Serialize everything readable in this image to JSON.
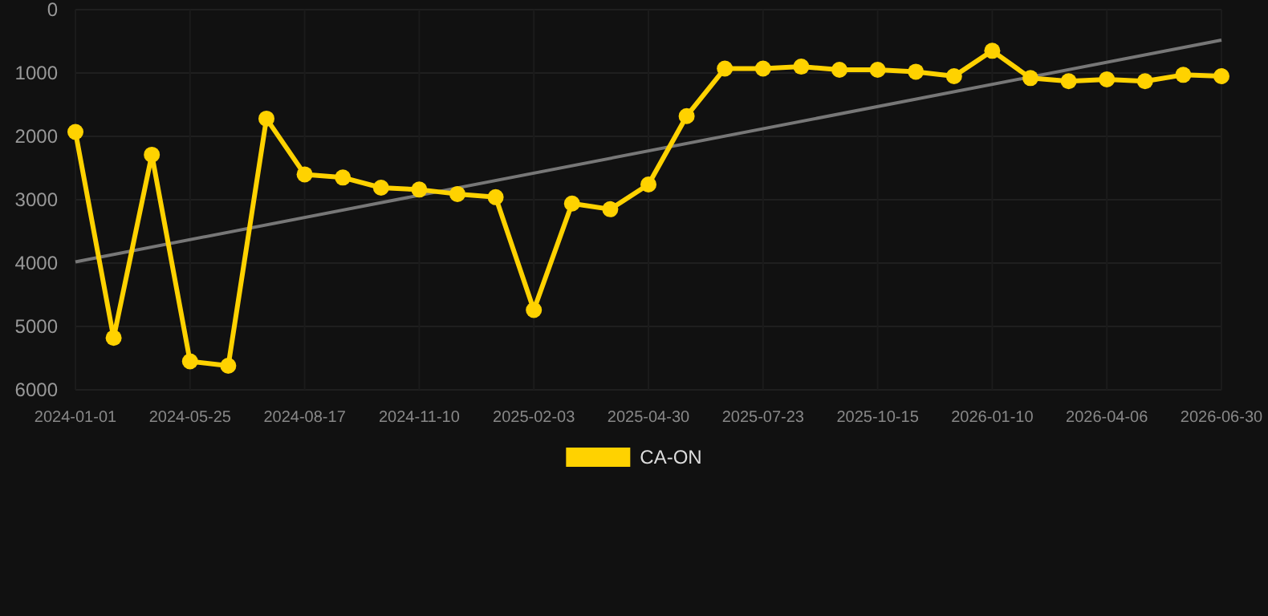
{
  "chart_data": {
    "type": "line",
    "categories": [
      "2024-01-01",
      null,
      null,
      "2024-05-25",
      null,
      null,
      "2024-08-17",
      null,
      null,
      "2024-11-10",
      null,
      null,
      "2025-02-03",
      null,
      null,
      "2025-04-30",
      null,
      null,
      "2025-07-23",
      null,
      null,
      "2025-10-15",
      null,
      null,
      "2026-01-10",
      null,
      null,
      "2026-04-06",
      null,
      null,
      "2026-06-30"
    ],
    "series": [
      {
        "name": "CA-ON",
        "color": "#ffd200",
        "marker": "circle",
        "values": [
          1930,
          5180,
          2290,
          5550,
          5620,
          1720,
          2600,
          2650,
          2810,
          2840,
          2910,
          2960,
          4740,
          3060,
          3150,
          2760,
          1680,
          930,
          930,
          900,
          950,
          950,
          980,
          1050,
          650,
          1080,
          1130,
          1100,
          1130,
          1030,
          1050
        ]
      },
      {
        "type": "line",
        "color": "#777777",
        "marker": "none",
        "values": [
          3980,
          null,
          null,
          null,
          null,
          null,
          null,
          null,
          null,
          null,
          null,
          null,
          null,
          null,
          null,
          null,
          null,
          null,
          null,
          null,
          null,
          null,
          null,
          null,
          null,
          null,
          null,
          null,
          null,
          null,
          480
        ]
      }
    ],
    "ylim": [
      6000,
      0
    ],
    "yticks": [
      0,
      1000,
      2000,
      3000,
      4000,
      5000,
      6000
    ],
    "grid": true,
    "legend": "bottom"
  }
}
